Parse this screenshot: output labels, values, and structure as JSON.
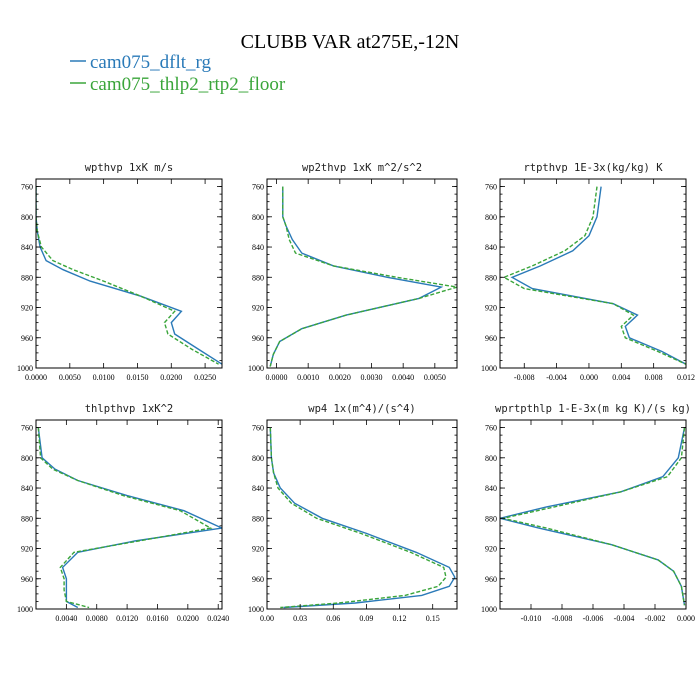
{
  "figure_title": "CLUBB VAR at275E,-12N",
  "legend": [
    {
      "label": "cam075_dflt_rg",
      "color": "#2a7ab8",
      "dash": "solid"
    },
    {
      "label": "cam075_thlp2_rtp2_floor",
      "color": "#3aa53a",
      "dash": "dashed"
    }
  ],
  "chart_data": [
    {
      "type": "line",
      "title": "wpthvp  1xK m/s",
      "xlim": [
        0,
        0.0275
      ],
      "ylim": [
        1000,
        750
      ],
      "xticks": [
        "0.0000",
        "0.0050",
        "0.0100",
        "0.0150",
        "0.0200",
        "0.0250"
      ],
      "xtick_values": [
        0,
        0.005,
        0.01,
        0.015,
        0.02,
        0.025
      ],
      "yticks": [
        "760",
        "800",
        "840",
        "880",
        "920",
        "960",
        "1000"
      ],
      "ytick_values": [
        760,
        800,
        840,
        880,
        920,
        960,
        1000
      ],
      "series": [
        {
          "name": "cam075_dflt_rg",
          "x": [
            0,
            0,
            0.0002,
            0.0006,
            0.0015,
            0.004,
            0.008,
            0.0155,
            0.0215,
            0.02,
            0.0205,
            0.024,
            0.0275
          ],
          "y": [
            760,
            800,
            820,
            840,
            858,
            870,
            885,
            905,
            925,
            940,
            955,
            975,
            995
          ]
        },
        {
          "name": "cam075_thlp2_rtp2_floor",
          "x": [
            0,
            0,
            0.0002,
            0.0008,
            0.0025,
            0.0055,
            0.01,
            0.0155,
            0.0205,
            0.019,
            0.0195,
            0.023,
            0.027
          ],
          "y": [
            760,
            800,
            820,
            840,
            858,
            870,
            885,
            905,
            925,
            940,
            955,
            975,
            995
          ]
        }
      ]
    },
    {
      "type": "line",
      "title": "wp2thvp  1xK m^2/s^2",
      "xlim": [
        -0.0003,
        0.0057
      ],
      "ylim": [
        1000,
        750
      ],
      "xticks": [
        "0.0000",
        "0.0010",
        "0.0020",
        "0.0030",
        "0.0040",
        "0.0050"
      ],
      "xtick_values": [
        0,
        0.001,
        0.002,
        0.003,
        0.004,
        0.005
      ],
      "yticks": [
        "760",
        "800",
        "840",
        "880",
        "920",
        "960",
        "1000"
      ],
      "ytick_values": [
        760,
        800,
        840,
        880,
        920,
        960,
        1000
      ],
      "series": [
        {
          "name": "cam075_dflt_rg",
          "x": [
            0.0002,
            0.0002,
            0.0003,
            0.0005,
            0.0008,
            0.0018,
            0.0035,
            0.0052,
            0.0045,
            0.0022,
            0.0008,
            0.0001,
            -0.0001,
            -0.0002
          ],
          "y": [
            760,
            800,
            812,
            830,
            848,
            865,
            880,
            893,
            908,
            930,
            948,
            965,
            982,
            998
          ]
        },
        {
          "name": "cam075_thlp2_rtp2_floor",
          "x": [
            0.0002,
            0.0002,
            0.0003,
            0.0004,
            0.0006,
            0.0018,
            0.0038,
            0.0057,
            0.0045,
            0.0022,
            0.0008,
            0.0001,
            -0.0001,
            -0.0002
          ],
          "y": [
            760,
            800,
            812,
            830,
            848,
            865,
            880,
            893,
            908,
            930,
            948,
            965,
            982,
            998
          ]
        }
      ]
    },
    {
      "type": "line",
      "title": "rtpthvp  1E-3x(kg/kg) K",
      "xlim": [
        -0.011,
        0.012
      ],
      "ylim": [
        1000,
        750
      ],
      "xticks": [
        "-0.008",
        "-0.004",
        "0.000",
        "0.004",
        "0.008",
        "0.012"
      ],
      "xtick_values": [
        -0.008,
        -0.004,
        0,
        0.004,
        0.008,
        0.012
      ],
      "yticks": [
        "760",
        "800",
        "840",
        "880",
        "920",
        "960",
        "1000"
      ],
      "ytick_values": [
        760,
        800,
        840,
        880,
        920,
        960,
        1000
      ],
      "series": [
        {
          "name": "cam075_dflt_rg",
          "x": [
            0.0015,
            0.001,
            0.0,
            -0.002,
            -0.006,
            -0.0095,
            -0.007,
            0.003,
            0.006,
            0.0045,
            0.005,
            0.009,
            0.012
          ],
          "y": [
            760,
            800,
            825,
            845,
            865,
            880,
            895,
            915,
            930,
            945,
            960,
            978,
            995
          ]
        },
        {
          "name": "cam075_thlp2_rtp2_floor",
          "x": [
            0.001,
            0.0005,
            -0.0005,
            -0.003,
            -0.007,
            -0.0105,
            -0.008,
            0.003,
            0.0055,
            0.004,
            0.0045,
            0.0085,
            0.012
          ],
          "y": [
            760,
            800,
            825,
            845,
            865,
            880,
            895,
            915,
            930,
            945,
            960,
            978,
            995
          ]
        }
      ]
    },
    {
      "type": "line",
      "title": "thlpthvp  1xK^2",
      "xlim": [
        0,
        0.0245
      ],
      "ylim": [
        1000,
        750
      ],
      "xticks": [
        "0.0040",
        "0.0080",
        "0.0120",
        "0.0160",
        "0.0200",
        "0.0240"
      ],
      "xtick_values": [
        0.004,
        0.008,
        0.012,
        0.016,
        0.02,
        0.024
      ],
      "yticks": [
        "760",
        "800",
        "840",
        "880",
        "920",
        "960",
        "1000"
      ],
      "ytick_values": [
        760,
        800,
        840,
        880,
        920,
        960,
        1000
      ],
      "series": [
        {
          "name": "cam075_dflt_rg",
          "x": [
            0.0003,
            0.0008,
            0.0025,
            0.0055,
            0.012,
            0.0195,
            0.0245,
            0.013,
            0.0055,
            0.0035,
            0.004,
            0.004,
            0.004,
            0.0055
          ],
          "y": [
            760,
            800,
            815,
            830,
            850,
            870,
            893,
            910,
            925,
            945,
            960,
            975,
            990,
            998
          ]
        },
        {
          "name": "cam075_thlp2_rtp2_floor",
          "x": [
            0.0003,
            0.0006,
            0.0022,
            0.0055,
            0.0115,
            0.019,
            0.023,
            0.0135,
            0.005,
            0.0032,
            0.0037,
            0.0037,
            0.004,
            0.007
          ],
          "y": [
            760,
            800,
            815,
            830,
            850,
            870,
            893,
            910,
            925,
            945,
            960,
            975,
            990,
            998
          ]
        }
      ]
    },
    {
      "type": "line",
      "title": "wp4  1x(m^4)/(s^4)",
      "xlim": [
        0,
        0.172
      ],
      "ylim": [
        1000,
        750
      ],
      "xticks": [
        "0.00",
        "0.03",
        "0.06",
        "0.09",
        "0.12",
        "0.15"
      ],
      "xtick_values": [
        0,
        0.03,
        0.06,
        0.09,
        0.12,
        0.15
      ],
      "yticks": [
        "760",
        "800",
        "840",
        "880",
        "920",
        "960",
        "1000"
      ],
      "ytick_values": [
        760,
        800,
        840,
        880,
        920,
        960,
        1000
      ],
      "series": [
        {
          "name": "cam075_dflt_rg",
          "x": [
            0.003,
            0.004,
            0.006,
            0.012,
            0.025,
            0.05,
            0.09,
            0.135,
            0.165,
            0.17,
            0.165,
            0.14,
            0.08,
            0.015
          ],
          "y": [
            760,
            800,
            820,
            840,
            860,
            880,
            900,
            925,
            945,
            958,
            970,
            982,
            992,
            998
          ]
        },
        {
          "name": "cam075_thlp2_rtp2_floor",
          "x": [
            0.003,
            0.004,
            0.006,
            0.01,
            0.022,
            0.045,
            0.085,
            0.13,
            0.16,
            0.162,
            0.155,
            0.125,
            0.065,
            0.012
          ],
          "y": [
            760,
            800,
            820,
            840,
            860,
            880,
            900,
            925,
            945,
            958,
            970,
            982,
            992,
            998
          ]
        }
      ]
    },
    {
      "type": "line",
      "title": "wprtpthlp  1-E-3x(m kg K)/(s kg)",
      "xlim": [
        -0.012,
        0.0
      ],
      "ylim": [
        1000,
        750
      ],
      "xticks": [
        "-0.010",
        "-0.008",
        "-0.006",
        "-0.004",
        "-0.002",
        "0.000"
      ],
      "xtick_values": [
        -0.01,
        -0.008,
        -0.006,
        -0.004,
        -0.002,
        0
      ],
      "yticks": [
        "760",
        "800",
        "840",
        "880",
        "920",
        "960",
        "1000"
      ],
      "ytick_values": [
        760,
        800,
        840,
        880,
        920,
        960,
        1000
      ],
      "series": [
        {
          "name": "cam075_dflt_rg",
          "x": [
            -0.0001,
            -0.0005,
            -0.0015,
            -0.0042,
            -0.009,
            -0.012,
            -0.0095,
            -0.0048,
            -0.0018,
            -0.0008,
            -0.0003,
            -0.0001
          ],
          "y": [
            760,
            800,
            825,
            845,
            865,
            880,
            893,
            915,
            935,
            950,
            970,
            995
          ]
        },
        {
          "name": "cam075_thlp2_rtp2_floor",
          "x": [
            -0.0001,
            -0.0003,
            -0.0012,
            -0.0042,
            -0.0085,
            -0.0118,
            -0.009,
            -0.0048,
            -0.0018,
            -0.0008,
            -0.0003,
            -0.0001
          ],
          "y": [
            760,
            800,
            825,
            845,
            865,
            880,
            893,
            915,
            935,
            950,
            970,
            995
          ]
        }
      ]
    }
  ]
}
